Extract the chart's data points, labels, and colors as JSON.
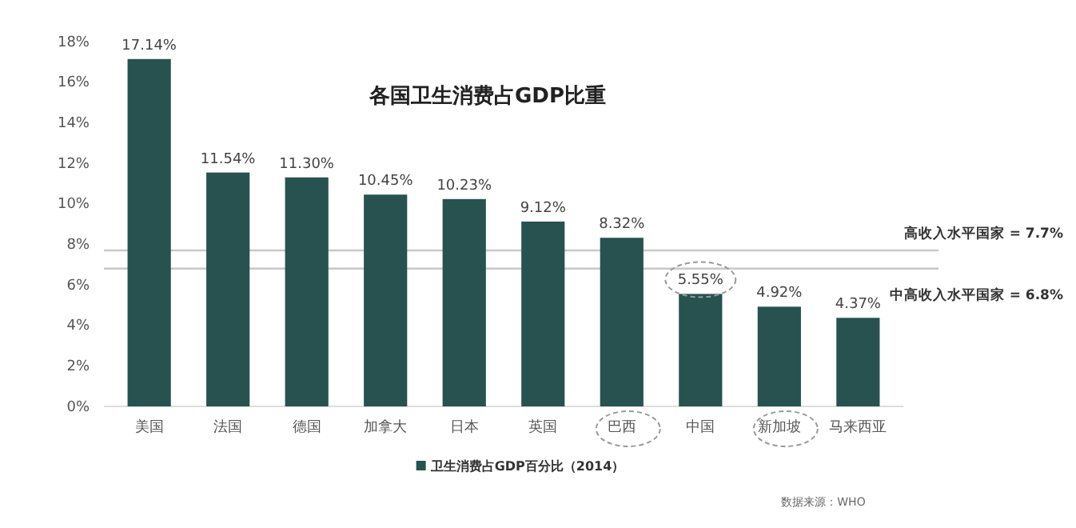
{
  "chart_data": {
    "type": "bar",
    "title": "各国卫生消费占GDP比重",
    "categories": [
      "美国",
      "法国",
      "德国",
      "加拿大",
      "日本",
      "英国",
      "巴西",
      "中国",
      "新加坡",
      "马来西亚"
    ],
    "series": [
      {
        "name": "卫生消费占GDP百分比（2014）",
        "color": "#27524f",
        "values": [
          17.14,
          11.54,
          11.3,
          10.45,
          10.23,
          9.12,
          8.32,
          5.55,
          4.92,
          4.37
        ],
        "value_labels": [
          "17.14%",
          "11.54%",
          "11.30%",
          "10.45%",
          "10.23%",
          "9.12%",
          "8.32%",
          "5.55%",
          "4.92%",
          "4.37%"
        ]
      }
    ],
    "ylim": [
      0,
      18
    ],
    "yticks": [
      {
        "value": 0,
        "label": "0%"
      },
      {
        "value": 2,
        "label": "2%"
      },
      {
        "value": 4,
        "label": "4%"
      },
      {
        "value": 6,
        "label": "6%"
      },
      {
        "value": 8,
        "label": "8%"
      },
      {
        "value": 10,
        "label": "10%"
      },
      {
        "value": 12,
        "label": "12%"
      },
      {
        "value": 14,
        "label": "14%"
      },
      {
        "value": 16,
        "label": "16%"
      },
      {
        "value": 18,
        "label": "18%"
      }
    ],
    "ref_lines": [
      {
        "axis": "y",
        "value": 7.7,
        "label": "高收入水平国家 = 7.7%",
        "color": "#c8c8c8"
      },
      {
        "axis": "y",
        "value": 6.8,
        "label": "中高收入水平国家 = 6.8%",
        "color": "#c8c8c8"
      }
    ],
    "legend": "bottom",
    "grid": false,
    "annotations": [
      "数据来源：WHO"
    ]
  }
}
